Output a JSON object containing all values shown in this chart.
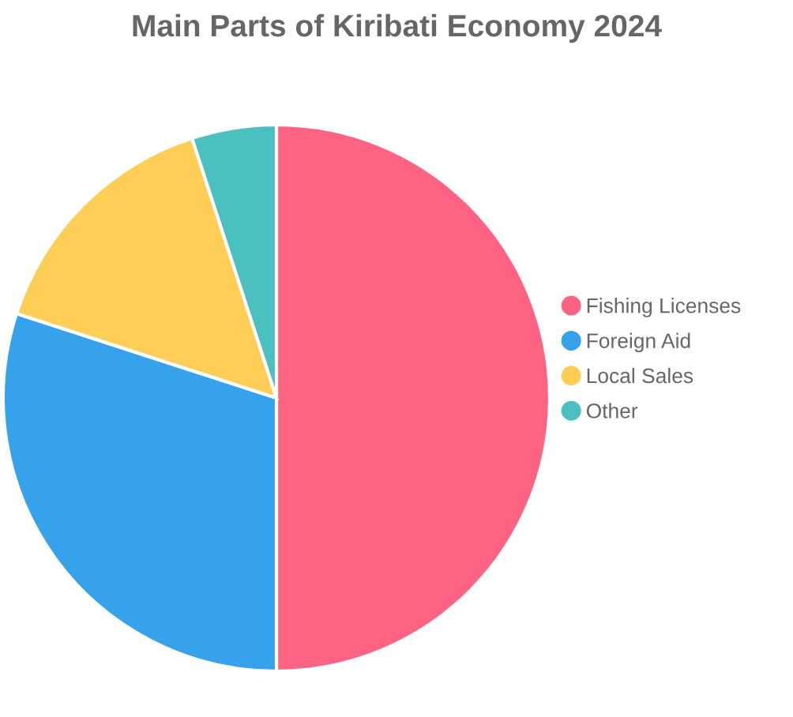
{
  "chart_data": {
    "type": "pie",
    "title": "Main Parts of Kiribati Economy 2024",
    "categories": [
      "Fishing Licenses",
      "Foreign Aid",
      "Local Sales",
      "Other"
    ],
    "values": [
      50,
      30,
      15,
      5
    ],
    "colors": [
      "#ff6384",
      "#36a2eb",
      "#ffce56",
      "#4bc0c0"
    ],
    "legend": "right"
  }
}
